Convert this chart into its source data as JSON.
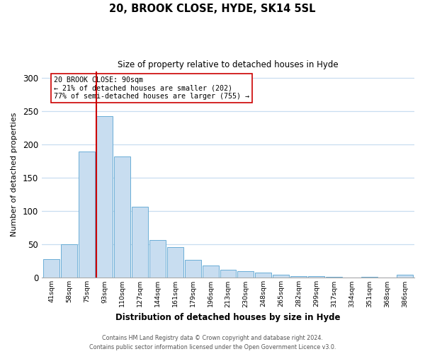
{
  "title1": "20, BROOK CLOSE, HYDE, SK14 5SL",
  "title2": "Size of property relative to detached houses in Hyde",
  "xlabel": "Distribution of detached houses by size in Hyde",
  "ylabel": "Number of detached properties",
  "bar_color": "#c8ddf0",
  "bar_edge_color": "#6baed6",
  "categories": [
    "41sqm",
    "58sqm",
    "75sqm",
    "93sqm",
    "110sqm",
    "127sqm",
    "144sqm",
    "161sqm",
    "179sqm",
    "196sqm",
    "213sqm",
    "230sqm",
    "248sqm",
    "265sqm",
    "282sqm",
    "299sqm",
    "317sqm",
    "334sqm",
    "351sqm",
    "368sqm",
    "386sqm"
  ],
  "values": [
    28,
    50,
    190,
    243,
    182,
    107,
    57,
    46,
    27,
    18,
    12,
    10,
    8,
    5,
    3,
    3,
    1,
    0,
    1,
    0,
    5
  ],
  "vline_color": "#cc0000",
  "vline_bar_index": 3,
  "annotation_text_line1": "20 BROOK CLOSE: 90sqm",
  "annotation_text_line2": "← 21% of detached houses are smaller (202)",
  "annotation_text_line3": "77% of semi-detached houses are larger (755) →",
  "ylim": [
    0,
    310
  ],
  "yticks": [
    0,
    50,
    100,
    150,
    200,
    250,
    300
  ],
  "footer1": "Contains HM Land Registry data © Crown copyright and database right 2024.",
  "footer2": "Contains public sector information licensed under the Open Government Licence v3.0."
}
